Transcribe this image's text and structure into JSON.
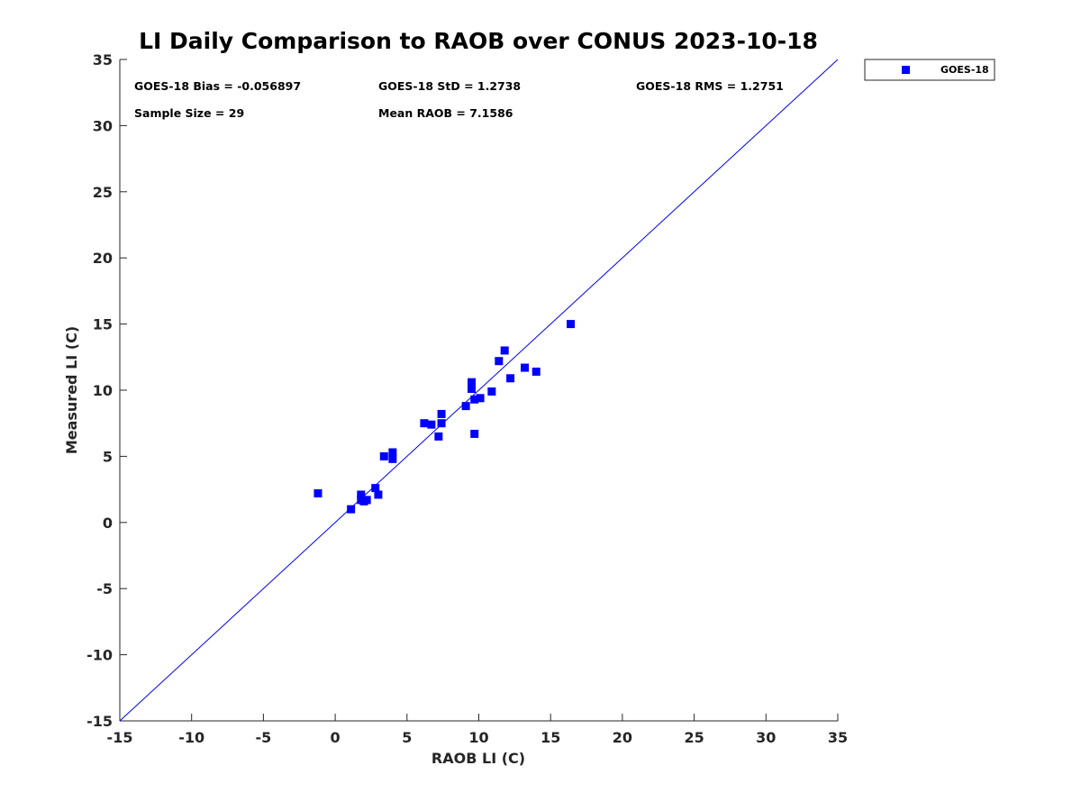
{
  "chart_data": {
    "type": "scatter",
    "title": "LI Daily Comparison to RAOB over CONUS 2023-10-18",
    "xlabel": "RAOB LI (C)",
    "ylabel": "Measured LI (C)",
    "xlim": [
      -15,
      35
    ],
    "ylim": [
      -15,
      35
    ],
    "xticks": [
      -15,
      -10,
      -5,
      0,
      5,
      10,
      15,
      20,
      25,
      30,
      35
    ],
    "yticks": [
      -15,
      -10,
      -5,
      0,
      5,
      10,
      15,
      20,
      25,
      30,
      35
    ],
    "grid": false,
    "legend_position": "outside-top-right",
    "series": [
      {
        "name": "GOES-18",
        "color": "#0000ff",
        "marker": "square",
        "points": [
          [
            -1.2,
            2.2
          ],
          [
            1.1,
            1.0
          ],
          [
            1.8,
            1.7
          ],
          [
            1.8,
            2.1
          ],
          [
            2.0,
            1.6
          ],
          [
            2.2,
            1.7
          ],
          [
            2.8,
            2.6
          ],
          [
            3.0,
            2.1
          ],
          [
            3.4,
            5.0
          ],
          [
            4.0,
            4.8
          ],
          [
            4.0,
            5.3
          ],
          [
            6.2,
            7.5
          ],
          [
            6.7,
            7.4
          ],
          [
            7.2,
            6.5
          ],
          [
            7.4,
            8.2
          ],
          [
            7.4,
            7.5
          ],
          [
            9.1,
            8.8
          ],
          [
            9.5,
            10.6
          ],
          [
            9.5,
            10.1
          ],
          [
            9.7,
            9.3
          ],
          [
            9.7,
            6.7
          ],
          [
            10.1,
            9.4
          ],
          [
            10.9,
            9.9
          ],
          [
            11.4,
            12.2
          ],
          [
            11.8,
            13.0
          ],
          [
            12.2,
            10.9
          ],
          [
            13.2,
            11.7
          ],
          [
            14.0,
            11.4
          ],
          [
            16.4,
            15.0
          ]
        ]
      }
    ],
    "reference_line": {
      "type": "one-to-one",
      "from": [
        -15,
        -15
      ],
      "to": [
        35,
        35
      ],
      "color": "#0000ff"
    },
    "annotations": [
      "GOES-18 Bias = -0.056897",
      "GOES-18 StD = 1.2738",
      "GOES-18 RMS = 1.2751",
      "Sample Size = 29",
      "Mean RAOB = 7.1586"
    ]
  }
}
